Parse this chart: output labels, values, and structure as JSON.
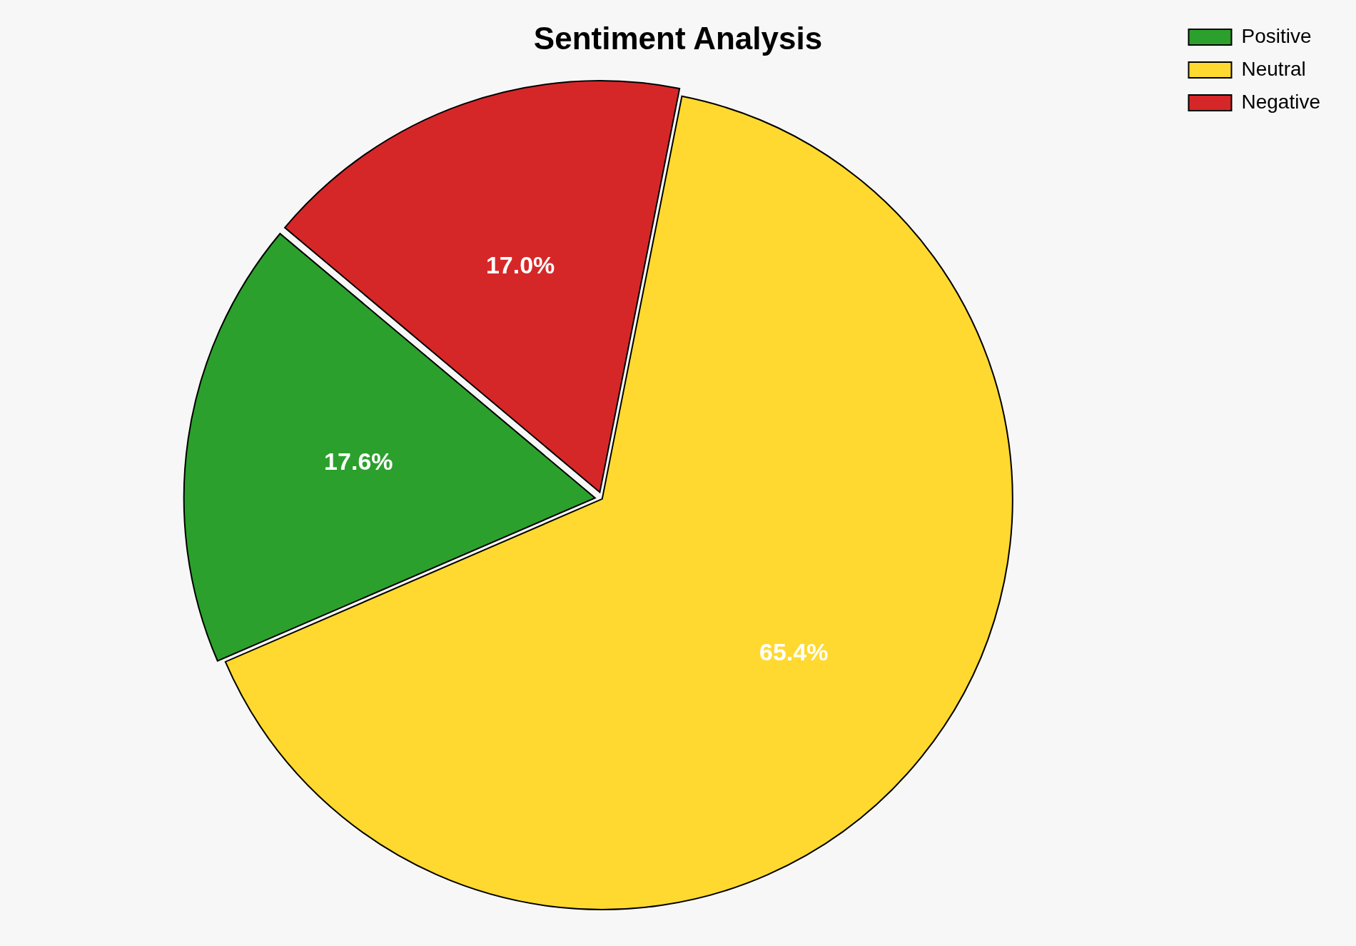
{
  "chart_data": {
    "type": "pie",
    "title": "Sentiment Analysis",
    "categories": [
      "Positive",
      "Neutral",
      "Negative"
    ],
    "values": [
      17.6,
      65.4,
      17.0
    ],
    "colors": [
      "#2ca02c",
      "#ffd92f",
      "#d62728"
    ],
    "value_labels": [
      "17.6%",
      "65.4%",
      "17.0%"
    ],
    "legend": "top right"
  }
}
